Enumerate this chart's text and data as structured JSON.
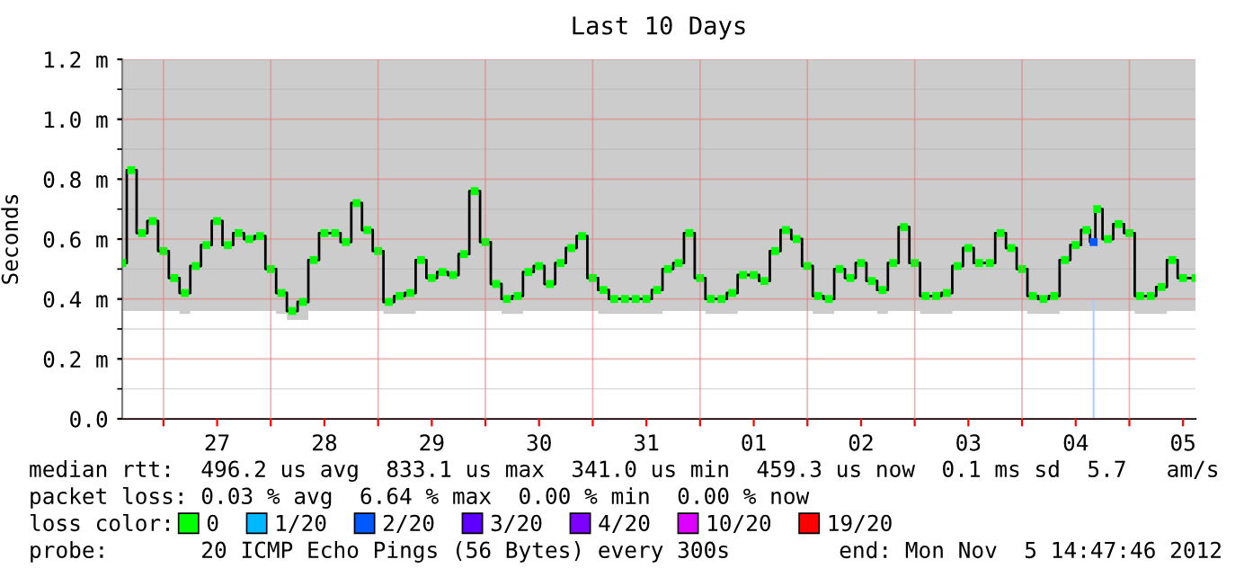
{
  "chart_data": {
    "type": "step",
    "title": "Last 10 Days",
    "ylabel": "Seconds",
    "x": [
      "2012-10-26T14:47",
      "2012-10-26T16:48",
      "2012-10-26T19:12",
      "2012-10-26T21:36",
      "2012-10-27T00:00",
      "2012-10-27T02:24",
      "2012-10-27T04:48",
      "2012-10-27T07:12",
      "2012-10-27T09:36",
      "2012-10-27T12:00",
      "2012-10-27T14:24",
      "2012-10-27T16:48",
      "2012-10-27T19:12",
      "2012-10-27T21:36",
      "2012-10-28T00:00",
      "2012-10-28T02:24",
      "2012-10-28T04:48",
      "2012-10-28T07:12",
      "2012-10-28T09:36",
      "2012-10-28T12:00",
      "2012-10-28T14:24",
      "2012-10-28T16:48",
      "2012-10-28T19:12",
      "2012-10-28T21:36",
      "2012-10-29T00:00",
      "2012-10-29T02:24",
      "2012-10-29T04:48",
      "2012-10-29T07:12",
      "2012-10-29T09:36",
      "2012-10-29T12:00",
      "2012-10-29T14:24",
      "2012-10-29T16:48",
      "2012-10-29T19:12",
      "2012-10-29T21:36",
      "2012-10-30T00:00",
      "2012-10-30T02:24",
      "2012-10-30T04:48",
      "2012-10-30T07:12",
      "2012-10-30T09:36",
      "2012-10-30T12:00",
      "2012-10-30T14:24",
      "2012-10-30T16:48",
      "2012-10-30T19:12",
      "2012-10-30T21:36",
      "2012-10-31T00:00",
      "2012-10-31T02:24",
      "2012-10-31T04:48",
      "2012-10-31T07:12",
      "2012-10-31T09:36",
      "2012-10-31T12:00",
      "2012-10-31T14:24",
      "2012-10-31T16:48",
      "2012-10-31T19:12",
      "2012-10-31T21:36",
      "2012-11-01T00:00",
      "2012-11-01T02:24",
      "2012-11-01T04:48",
      "2012-11-01T07:12",
      "2012-11-01T09:36",
      "2012-11-01T12:00",
      "2012-11-01T14:24",
      "2012-11-01T16:48",
      "2012-11-01T19:12",
      "2012-11-01T21:36",
      "2012-11-02T00:00",
      "2012-11-02T02:24",
      "2012-11-02T04:48",
      "2012-11-02T07:12",
      "2012-11-02T09:36",
      "2012-11-02T12:00",
      "2012-11-02T14:24",
      "2012-11-02T16:48",
      "2012-11-02T19:12",
      "2012-11-02T21:36",
      "2012-11-03T00:00",
      "2012-11-03T02:24",
      "2012-11-03T04:48",
      "2012-11-03T07:12",
      "2012-11-03T09:36",
      "2012-11-03T12:00",
      "2012-11-03T14:24",
      "2012-11-03T16:48",
      "2012-11-03T19:12",
      "2012-11-03T21:36",
      "2012-11-04T00:00",
      "2012-11-04T02:24",
      "2012-11-04T04:48",
      "2012-11-04T07:12",
      "2012-11-04T09:36",
      "2012-11-04T12:00",
      "2012-11-04T14:24",
      "2012-11-04T16:00",
      "2012-11-04T16:48",
      "2012-11-04T19:12",
      "2012-11-04T21:36",
      "2012-11-05T00:00",
      "2012-11-05T02:24",
      "2012-11-05T04:48",
      "2012-11-05T07:12",
      "2012-11-05T09:36",
      "2012-11-05T12:00",
      "2012-11-05T14:47"
    ],
    "series": [
      {
        "color": "#000000",
        "values": [
          0.52,
          0.83,
          0.62,
          0.66,
          0.56,
          0.47,
          0.42,
          0.51,
          0.58,
          0.66,
          0.58,
          0.62,
          0.6,
          0.61,
          0.5,
          0.42,
          0.36,
          0.39,
          0.53,
          0.62,
          0.62,
          0.59,
          0.72,
          0.63,
          0.56,
          0.39,
          0.41,
          0.42,
          0.53,
          0.47,
          0.49,
          0.48,
          0.55,
          0.76,
          0.59,
          0.45,
          0.4,
          0.41,
          0.49,
          0.51,
          0.45,
          0.52,
          0.57,
          0.61,
          0.47,
          0.43,
          0.4,
          0.4,
          0.4,
          0.4,
          0.43,
          0.5,
          0.52,
          0.62,
          0.47,
          0.4,
          0.4,
          0.42,
          0.48,
          0.48,
          0.46,
          0.56,
          0.63,
          0.6,
          0.51,
          0.41,
          0.4,
          0.5,
          0.47,
          0.52,
          0.46,
          0.43,
          0.52,
          0.64,
          0.52,
          0.41,
          0.41,
          0.42,
          0.51,
          0.57,
          0.52,
          0.52,
          0.62,
          0.57,
          0.5,
          0.41,
          0.4,
          0.41,
          0.53,
          0.58,
          0.63,
          0.59,
          0.7,
          0.6,
          0.65,
          0.62,
          0.41,
          0.41,
          0.44,
          0.53,
          0.47,
          0.47
        ],
        "lower": [
          0.36,
          0.36,
          0.36,
          0.36,
          0.36,
          0.36,
          0.35,
          0.36,
          0.36,
          0.36,
          0.36,
          0.36,
          0.36,
          0.36,
          0.36,
          0.35,
          0.33,
          0.33,
          0.36,
          0.36,
          0.36,
          0.36,
          0.36,
          0.36,
          0.36,
          0.35,
          0.35,
          0.35,
          0.36,
          0.36,
          0.36,
          0.36,
          0.36,
          0.36,
          0.36,
          0.36,
          0.35,
          0.35,
          0.36,
          0.36,
          0.36,
          0.36,
          0.36,
          0.36,
          0.36,
          0.35,
          0.35,
          0.35,
          0.35,
          0.35,
          0.35,
          0.36,
          0.36,
          0.36,
          0.36,
          0.35,
          0.35,
          0.35,
          0.36,
          0.36,
          0.36,
          0.36,
          0.36,
          0.36,
          0.36,
          0.35,
          0.35,
          0.36,
          0.36,
          0.36,
          0.36,
          0.35,
          0.36,
          0.36,
          0.36,
          0.35,
          0.35,
          0.35,
          0.36,
          0.36,
          0.36,
          0.36,
          0.36,
          0.36,
          0.36,
          0.35,
          0.35,
          0.35,
          0.36,
          0.36,
          0.36,
          0.36,
          0.36,
          0.36,
          0.36,
          0.36,
          0.35,
          0.35,
          0.35,
          0.36,
          0.36,
          0.36
        ],
        "upper": [
          1.2,
          1.2,
          1.2,
          1.2,
          1.2,
          1.2,
          1.2,
          1.2,
          1.2,
          1.2,
          1.2,
          1.2,
          1.2,
          1.2,
          1.2,
          1.2,
          1.2,
          1.2,
          1.2,
          1.2,
          1.2,
          1.2,
          1.2,
          1.2,
          1.2,
          1.2,
          1.2,
          1.2,
          1.2,
          1.2,
          1.2,
          1.2,
          1.2,
          1.2,
          1.2,
          1.2,
          1.2,
          1.2,
          1.2,
          1.2,
          1.2,
          1.2,
          1.2,
          1.2,
          1.2,
          1.2,
          1.2,
          1.2,
          1.2,
          1.2,
          1.2,
          1.2,
          1.2,
          1.2,
          1.2,
          1.2,
          1.2,
          1.2,
          1.2,
          1.2,
          1.2,
          1.2,
          1.2,
          1.2,
          1.2,
          1.2,
          1.2,
          1.2,
          1.2,
          1.2,
          1.2,
          1.2,
          1.2,
          1.2,
          1.2,
          1.2,
          1.2,
          1.2,
          1.2,
          1.2,
          1.2,
          1.2,
          1.2,
          1.2,
          1.2,
          1.2,
          1.2,
          1.2,
          1.2,
          1.2,
          1.2,
          1.2,
          1.2,
          1.2,
          1.2,
          1.2,
          1.2,
          1.2,
          1.2,
          1.2,
          1.2,
          1.2
        ]
      },
      {
        "type": "bar",
        "color": "#aaccff",
        "x": [
          "2012-11-04T16:00"
        ],
        "values": [
          0.4
        ]
      },
      {
        "type": "scatter",
        "name": "0",
        "color": "#00ff00",
        "marker": "square",
        "values": [
          0.52,
          0.83,
          0.62,
          0.66,
          0.56,
          0.47,
          0.42,
          0.51,
          0.58,
          0.66,
          0.58,
          0.62,
          0.6,
          0.61,
          0.5,
          0.42,
          0.36,
          0.39,
          0.53,
          0.62,
          0.62,
          0.59,
          0.72,
          0.63,
          0.56,
          0.39,
          0.41,
          0.42,
          0.53,
          0.47,
          0.49,
          0.48,
          0.55,
          0.76,
          0.59,
          0.45,
          0.4,
          0.41,
          0.49,
          0.51,
          0.45,
          0.52,
          0.57,
          0.61,
          0.47,
          0.43,
          0.4,
          0.4,
          0.4,
          0.4,
          0.43,
          0.5,
          0.52,
          0.62,
          0.47,
          0.4,
          0.4,
          0.42,
          0.48,
          0.48,
          0.46,
          0.56,
          0.63,
          0.6,
          0.51,
          0.41,
          0.4,
          0.5,
          0.47,
          0.52,
          0.46,
          0.43,
          0.52,
          0.64,
          0.52,
          0.41,
          0.41,
          0.42,
          0.51,
          0.57,
          0.52,
          0.52,
          0.62,
          0.57,
          0.5,
          0.41,
          0.4,
          0.41,
          0.53,
          0.58,
          0.63,
          null,
          0.7,
          0.6,
          0.65,
          0.62,
          0.41,
          0.41,
          0.44,
          0.53,
          0.47,
          0.47
        ]
      },
      {
        "type": "scatter",
        "name": "1/20",
        "color": "#00b8ff",
        "marker": "square",
        "values": [
          null,
          null,
          null,
          null,
          null,
          null,
          null,
          null,
          null,
          null,
          null,
          null,
          null,
          null,
          null,
          null,
          null,
          null,
          null,
          null,
          null,
          null,
          null,
          null,
          null,
          null,
          null,
          null,
          null,
          null,
          null,
          null,
          null,
          null,
          null,
          null,
          null,
          null,
          null,
          null,
          null,
          null,
          null,
          null,
          null,
          null,
          null,
          null,
          null,
          null,
          null,
          null,
          null,
          null,
          null,
          null,
          null,
          null,
          null,
          null,
          null,
          null,
          null,
          null,
          null,
          null,
          null,
          null,
          null,
          null,
          null,
          null,
          null,
          null,
          null,
          null,
          null,
          null,
          null,
          null,
          null,
          null,
          null,
          null,
          null,
          null,
          null,
          null,
          null,
          null,
          null,
          null,
          null,
          null,
          null,
          null,
          null,
          null,
          null,
          null,
          null,
          null
        ]
      },
      {
        "type": "scatter",
        "name": "2/20",
        "color": "#0059ff",
        "marker": "square",
        "x": [
          "2012-11-04T16:00"
        ],
        "values": [
          0.59
        ]
      },
      {
        "type": "scatter",
        "name": "3/20",
        "color": "#5e00ff",
        "marker": "square",
        "values": [
          null,
          null,
          null,
          null,
          null,
          null,
          null,
          null,
          null,
          null,
          null,
          null,
          null,
          null,
          null,
          null,
          null,
          null,
          null,
          null,
          null,
          null,
          null,
          null,
          null,
          null,
          null,
          null,
          null,
          null,
          null,
          null,
          null,
          null,
          null,
          null,
          null,
          null,
          null,
          null,
          null,
          null,
          null,
          null,
          null,
          null,
          null,
          null,
          null,
          null,
          null,
          null,
          null,
          null,
          null,
          null,
          null,
          null,
          null,
          null,
          null,
          null,
          null,
          null,
          null,
          null,
          null,
          null,
          null,
          null,
          null,
          null,
          null,
          null,
          null,
          null,
          null,
          null,
          null,
          null,
          null,
          null,
          null,
          null,
          null,
          null,
          null,
          null,
          null,
          null,
          null,
          null,
          null,
          null,
          null,
          null,
          null,
          null,
          null,
          null,
          null,
          null
        ]
      },
      {
        "type": "scatter",
        "name": "4/20",
        "color": "#7e00ff",
        "marker": "square",
        "values": [
          null,
          null,
          null,
          null,
          null,
          null,
          null,
          null,
          null,
          null,
          null,
          null,
          null,
          null,
          null,
          null,
          null,
          null,
          null,
          null,
          null,
          null,
          null,
          null,
          null,
          null,
          null,
          null,
          null,
          null,
          null,
          null,
          null,
          null,
          null,
          null,
          null,
          null,
          null,
          null,
          null,
          null,
          null,
          null,
          null,
          null,
          null,
          null,
          null,
          null,
          null,
          null,
          null,
          null,
          null,
          null,
          null,
          null,
          null,
          null,
          null,
          null,
          null,
          null,
          null,
          null,
          null,
          null,
          null,
          null,
          null,
          null,
          null,
          null,
          null,
          null,
          null,
          null,
          null,
          null,
          null,
          null,
          null,
          null,
          null,
          null,
          null,
          null,
          null,
          null,
          null,
          null,
          null,
          null,
          null,
          null,
          null,
          null,
          null,
          null,
          null,
          null
        ]
      },
      {
        "type": "scatter",
        "name": "10/20",
        "color": "#dd00ff",
        "marker": "square",
        "values": [
          null,
          null,
          null,
          null,
          null,
          null,
          null,
          null,
          null,
          null,
          null,
          null,
          null,
          null,
          null,
          null,
          null,
          null,
          null,
          null,
          null,
          null,
          null,
          null,
          null,
          null,
          null,
          null,
          null,
          null,
          null,
          null,
          null,
          null,
          null,
          null,
          null,
          null,
          null,
          null,
          null,
          null,
          null,
          null,
          null,
          null,
          null,
          null,
          null,
          null,
          null,
          null,
          null,
          null,
          null,
          null,
          null,
          null,
          null,
          null,
          null,
          null,
          null,
          null,
          null,
          null,
          null,
          null,
          null,
          null,
          null,
          null,
          null,
          null,
          null,
          null,
          null,
          null,
          null,
          null,
          null,
          null,
          null,
          null,
          null,
          null,
          null,
          null,
          null,
          null,
          null,
          null,
          null,
          null,
          null,
          null,
          null,
          null,
          null,
          null,
          null,
          null
        ]
      },
      {
        "type": "scatter",
        "name": "19/20",
        "color": "#ff0000",
        "marker": "square",
        "values": [
          null,
          null,
          null,
          null,
          null,
          null,
          null,
          null,
          null,
          null,
          null,
          null,
          null,
          null,
          null,
          null,
          null,
          null,
          null,
          null,
          null,
          null,
          null,
          null,
          null,
          null,
          null,
          null,
          null,
          null,
          null,
          null,
          null,
          null,
          null,
          null,
          null,
          null,
          null,
          null,
          null,
          null,
          null,
          null,
          null,
          null,
          null,
          null,
          null,
          null,
          null,
          null,
          null,
          null,
          null,
          null,
          null,
          null,
          null,
          null,
          null,
          null,
          null,
          null,
          null,
          null,
          null,
          null,
          null,
          null,
          null,
          null,
          null,
          null,
          null,
          null,
          null,
          null,
          null,
          null,
          null,
          null,
          null,
          null,
          null,
          null,
          null,
          null,
          null,
          null,
          null,
          null,
          null,
          null,
          null,
          null,
          null,
          null,
          null,
          null,
          null,
          null
        ]
      }
    ],
    "xlim": [
      "2012-10-26T14:47",
      "2012-11-05T14:47"
    ],
    "xticks": [
      {
        "value": "2012-10-27T00:00",
        "label": null
      },
      {
        "value": "2012-10-27T12:00",
        "label": "27"
      },
      {
        "value": "2012-10-28T00:00",
        "label": null
      },
      {
        "value": "2012-10-28T12:00",
        "label": "28"
      },
      {
        "value": "2012-10-29T00:00",
        "label": null
      },
      {
        "value": "2012-10-29T12:00",
        "label": "29"
      },
      {
        "value": "2012-10-30T00:00",
        "label": null
      },
      {
        "value": "2012-10-30T12:00",
        "label": "30"
      },
      {
        "value": "2012-10-31T00:00",
        "label": null
      },
      {
        "value": "2012-10-31T12:00",
        "label": "31"
      },
      {
        "value": "2012-11-01T00:00",
        "label": null
      },
      {
        "value": "2012-11-01T12:00",
        "label": "01"
      },
      {
        "value": "2012-11-02T00:00",
        "label": null
      },
      {
        "value": "2012-11-02T12:00",
        "label": "02"
      },
      {
        "value": "2012-11-03T00:00",
        "label": null
      },
      {
        "value": "2012-11-03T12:00",
        "label": "03"
      },
      {
        "value": "2012-11-04T00:00",
        "label": null
      },
      {
        "value": "2012-11-04T12:00",
        "label": "04"
      },
      {
        "value": "2012-11-05T00:00",
        "label": null
      },
      {
        "value": "2012-11-05T12:00",
        "label": "05"
      }
    ],
    "ylim": [
      0,
      1.2
    ],
    "yticks": [
      {
        "value": 0,
        "label": "0.0"
      },
      {
        "value": 0.1,
        "label": null
      },
      {
        "value": 0.2,
        "label": "0.2 m"
      },
      {
        "value": 0.3,
        "label": null
      },
      {
        "value": 0.4,
        "label": "0.4 m"
      },
      {
        "value": 0.5,
        "label": null
      },
      {
        "value": 0.6,
        "label": "0.6 m"
      },
      {
        "value": 0.7,
        "label": null
      },
      {
        "value": 0.8,
        "label": "0.8 m"
      },
      {
        "value": 0.9,
        "label": null
      },
      {
        "value": 1.0,
        "label": "1.0 m"
      },
      {
        "value": 1.1,
        "label": null
      },
      {
        "value": 1.2,
        "label": "1.2 m"
      }
    ],
    "grid": true,
    "legend": "bottom",
    "annotations": [
      "median rtt:  496.2 us avg  833.1 us max  341.0 us min  459.3 us now  0.1 ms sd  5.7   am/s",
      "packet loss: 0.03 % avg  6.64 % max  0.00 % min  0.00 % now",
      "loss color:",
      "probe:       20 ICMP Echo Pings (56 Bytes) every 300s",
      "end: Mon Nov  5 14:47:46 2012"
    ]
  }
}
